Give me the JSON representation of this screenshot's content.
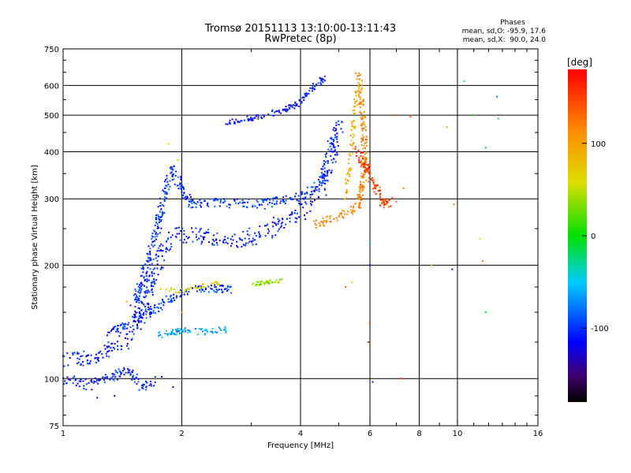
{
  "chart_data": {
    "type": "scatter",
    "title": "Tromsø 20151113 13:10:00-13:11:43",
    "subtitle": "RwPretec (8p)",
    "xlabel": "Frequency [MHz]",
    "ylabel": "Stationary phase Virtual Height [km]",
    "x_scale": "log",
    "y_scale": "log",
    "xlim": [
      1,
      16
    ],
    "ylim": [
      75,
      750
    ],
    "x_ticks": [
      "1",
      "2",
      "4",
      "6",
      "8",
      "10",
      "16"
    ],
    "y_ticks": [
      "75",
      "100",
      "200",
      "300",
      "400",
      "500",
      "600",
      "750"
    ],
    "grid": true,
    "stats": {
      "heading": "Phases",
      "line1": "mean, sd,O: -95.9, 17.6",
      "line2": "mean, sd,X:  90.0, 24.0"
    },
    "colorbar": {
      "label": "[deg]",
      "ticks": [
        "100",
        "0",
        "-100"
      ],
      "range": [
        -180,
        180
      ]
    },
    "traces": [
      {
        "points": [
          [
            1.0,
            112
          ],
          [
            1.1,
            112
          ],
          [
            1.2,
            114
          ],
          [
            1.3,
            118
          ],
          [
            1.4,
            124
          ],
          [
            1.5,
            132
          ],
          [
            1.55,
            140
          ],
          [
            1.6,
            160
          ],
          [
            1.7,
            190
          ],
          [
            1.8,
            220
          ],
          [
            1.9,
            240
          ],
          [
            2.2,
            240
          ],
          [
            2.6,
            232
          ],
          [
            3.0,
            238
          ],
          [
            3.5,
            255
          ],
          [
            4.0,
            275
          ],
          [
            4.5,
            320
          ],
          [
            4.8,
            400
          ],
          [
            5.0,
            480
          ]
        ],
        "phase": -110,
        "spread": 0.08,
        "n": 520
      },
      {
        "points": [
          [
            1.5,
            155
          ],
          [
            1.6,
            185
          ],
          [
            1.7,
            230
          ],
          [
            1.8,
            300
          ],
          [
            1.9,
            360
          ],
          [
            2.0,
            320
          ],
          [
            2.1,
            290
          ],
          [
            2.6,
            292
          ],
          [
            3.2,
            290
          ],
          [
            3.8,
            300
          ],
          [
            4.2,
            310
          ],
          [
            4.6,
            340
          ]
        ],
        "phase": -100,
        "spread": 0.05,
        "n": 360
      },
      {
        "points": [
          [
            1.0,
            100
          ],
          [
            1.15,
            96
          ],
          [
            1.3,
            100
          ],
          [
            1.45,
            105
          ],
          [
            1.6,
            95
          ],
          [
            1.75,
            100
          ]
        ],
        "phase": -105,
        "spread": 0.05,
        "n": 120
      },
      {
        "points": [
          [
            1.3,
            132
          ],
          [
            1.5,
            142
          ],
          [
            1.7,
            152
          ],
          [
            1.9,
            165
          ],
          [
            2.1,
            172
          ],
          [
            2.4,
            174
          ],
          [
            2.7,
            172
          ]
        ],
        "phase": -100,
        "spread": 0.04,
        "n": 160
      },
      {
        "points": [
          [
            1.7,
            130
          ],
          [
            2.0,
            134
          ],
          [
            2.3,
            133
          ],
          [
            2.6,
            135
          ]
        ],
        "phase": -60,
        "spread": 0.03,
        "n": 80
      },
      {
        "points": [
          [
            2.6,
            480
          ],
          [
            3.0,
            490
          ],
          [
            3.5,
            510
          ],
          [
            4.0,
            540
          ],
          [
            4.3,
            590
          ],
          [
            4.6,
            630
          ]
        ],
        "phase": -110,
        "spread": 0.03,
        "n": 130
      },
      {
        "points": [
          [
            1.75,
            175
          ],
          [
            2.0,
            170
          ],
          [
            2.3,
            177
          ],
          [
            2.5,
            180
          ]
        ],
        "phase": 70,
        "spread": 0.02,
        "n": 40
      },
      {
        "points": [
          [
            3.0,
            178
          ],
          [
            3.3,
            180
          ],
          [
            3.6,
            182
          ]
        ],
        "phase": 40,
        "spread": 0.02,
        "n": 40
      },
      {
        "points": [
          [
            4.3,
            255
          ],
          [
            4.8,
            265
          ],
          [
            5.2,
            275
          ],
          [
            5.6,
            285
          ],
          [
            5.8,
            350
          ],
          [
            5.8,
            450
          ],
          [
            5.7,
            560
          ],
          [
            5.6,
            640
          ]
        ],
        "phase": 115,
        "spread": 0.04,
        "n": 220
      },
      {
        "points": [
          [
            5.6,
            400
          ],
          [
            5.9,
            360
          ],
          [
            6.2,
            320
          ],
          [
            6.5,
            290
          ],
          [
            6.8,
            300
          ]
        ],
        "phase": 150,
        "spread": 0.05,
        "n": 110
      },
      {
        "points": [
          [
            5.2,
            300
          ],
          [
            5.4,
            420
          ],
          [
            5.5,
            520
          ],
          [
            5.6,
            600
          ]
        ],
        "phase": 90,
        "spread": 0.03,
        "n": 70
      }
    ],
    "outliers": [
      [
        10.4,
        615,
        -40
      ],
      [
        11.0,
        500,
        0
      ],
      [
        12.6,
        560,
        -80
      ],
      [
        12.7,
        490,
        -20
      ],
      [
        11.8,
        410,
        -10
      ],
      [
        11.8,
        150,
        -10
      ],
      [
        9.4,
        465,
        100
      ],
      [
        8.6,
        200,
        100
      ],
      [
        9.7,
        195,
        -140
      ],
      [
        9.8,
        290,
        120
      ],
      [
        11.4,
        235,
        60
      ],
      [
        11.6,
        205,
        130
      ],
      [
        5.2,
        175,
        130
      ],
      [
        6.0,
        140,
        160
      ],
      [
        6.0,
        200,
        -120
      ],
      [
        6.0,
        230,
        -40
      ],
      [
        6.1,
        98,
        -110
      ],
      [
        5.95,
        125,
        170
      ],
      [
        7.6,
        495,
        140
      ],
      [
        6.6,
        290,
        90
      ],
      [
        7.0,
        295,
        140
      ],
      [
        7.3,
        320,
        120
      ],
      [
        1.95,
        380,
        50
      ],
      [
        1.85,
        420,
        60
      ],
      [
        2.0,
        150,
        110
      ],
      [
        1.45,
        160,
        90
      ],
      [
        1.22,
        89,
        -120
      ],
      [
        1.35,
        90,
        -110
      ],
      [
        1.9,
        95,
        -140
      ],
      [
        3.1,
        490,
        60
      ],
      [
        6.9,
        500,
        140
      ],
      [
        5.4,
        180,
        60
      ],
      [
        7.2,
        100,
        160
      ]
    ]
  }
}
